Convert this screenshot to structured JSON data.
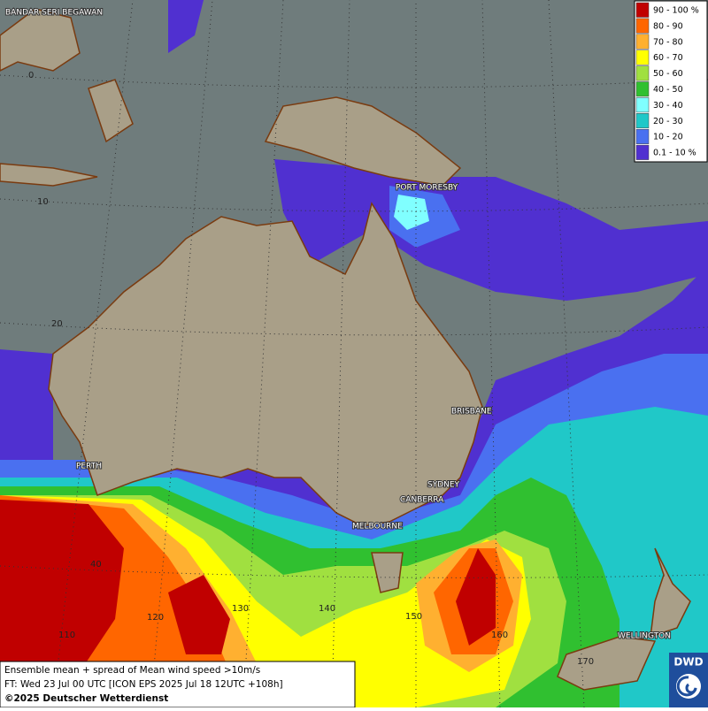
{
  "legend": {
    "items": [
      {
        "label": "90 - 100 %",
        "color": "#c00000"
      },
      {
        "label": "80 - 90",
        "color": "#ff6600"
      },
      {
        "label": "70 - 80",
        "color": "#ffb030"
      },
      {
        "label": "60 - 70",
        "color": "#ffff00"
      },
      {
        "label": "50 - 60",
        "color": "#a0e040"
      },
      {
        "label": "40 - 50",
        "color": "#30c030"
      },
      {
        "label": "30 - 40",
        "color": "#80ffff"
      },
      {
        "label": "20 - 30",
        "color": "#20c8c8"
      },
      {
        "label": "10 - 20",
        "color": "#4a70f0"
      },
      {
        "label": "0.1 - 10 %",
        "color": "#5030d0"
      }
    ]
  },
  "cities": [
    "BANDAR SERI BEGAWAN",
    "PORT MORESBY",
    "BRISBANE",
    "PERTH",
    "SYDNEY",
    "CANBERRA",
    "MELBOURNE",
    "WELLINGTON"
  ],
  "latitudes": [
    "0",
    "10",
    "20",
    "40"
  ],
  "longitudes": [
    "110",
    "120",
    "130",
    "140",
    "150",
    "160",
    "170"
  ],
  "footer": {
    "line1": "Ensemble mean + spread of Mean wind speed >10m/s",
    "line2": "FT: Wed 23 Jul 00 UTC [ICON EPS 2025 Jul 18 12UTC +108h]",
    "line3": "©2025 Deutscher Wetterdienst"
  },
  "logo": "DWD"
}
